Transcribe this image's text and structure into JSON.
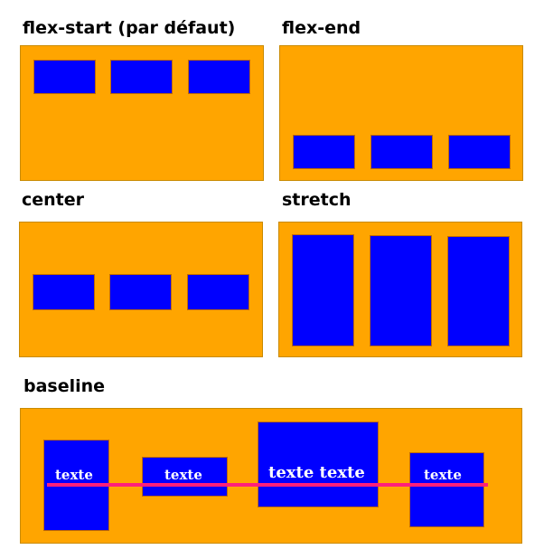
{
  "colors": {
    "container": "#ffa500",
    "item": "#0000ff",
    "baseline_line": "#ff1f7a",
    "item_text": "#ffffff"
  },
  "panels": {
    "flex_start": {
      "title": "flex-start (par défaut)"
    },
    "flex_end": {
      "title": "flex-end"
    },
    "center": {
      "title": "center"
    },
    "stretch": {
      "title": "stretch"
    },
    "baseline": {
      "title": "baseline",
      "items": [
        {
          "text": "texte"
        },
        {
          "text": "texte"
        },
        {
          "text": "texte texte"
        },
        {
          "text": "texte"
        }
      ]
    }
  }
}
